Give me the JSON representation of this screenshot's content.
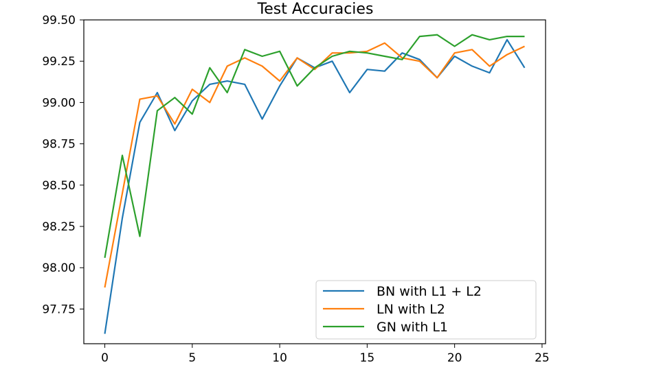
{
  "chart_data": {
    "type": "line",
    "title": "Test Accuracies",
    "xlabel": "",
    "ylabel": "",
    "xlim": [
      -1.2,
      25.2
    ],
    "ylim": [
      97.54,
      99.5
    ],
    "x_ticks": [
      0,
      5,
      10,
      15,
      20,
      25
    ],
    "y_ticks": [
      97.75,
      98.0,
      98.25,
      98.5,
      98.75,
      99.0,
      99.25,
      99.5
    ],
    "x_tick_labels": [
      "0",
      "5",
      "10",
      "15",
      "20",
      "25"
    ],
    "y_tick_labels": [
      "97.75",
      "98.00",
      "98.25",
      "98.50",
      "98.75",
      "99.00",
      "99.25",
      "99.50"
    ],
    "grid": false,
    "legend_position": "lower-right",
    "x": [
      0,
      1,
      2,
      3,
      4,
      5,
      6,
      7,
      8,
      9,
      10,
      11,
      12,
      13,
      14,
      15,
      16,
      17,
      18,
      19,
      20,
      21,
      22,
      23,
      24
    ],
    "series": [
      {
        "name": "BN with L1 + L2",
        "color": "#1f77b4",
        "values": [
          97.6,
          98.3,
          98.88,
          99.06,
          98.83,
          99.01,
          99.11,
          99.13,
          99.11,
          98.9,
          99.1,
          99.27,
          99.21,
          99.25,
          99.06,
          99.2,
          99.19,
          99.3,
          99.26,
          99.15,
          99.28,
          99.22,
          99.18,
          99.38,
          99.21
        ]
      },
      {
        "name": "LN with L2",
        "color": "#ff7f0e",
        "values": [
          97.88,
          98.45,
          99.02,
          99.04,
          98.87,
          99.08,
          99.0,
          99.22,
          99.27,
          99.22,
          99.13,
          99.27,
          99.2,
          99.3,
          99.3,
          99.31,
          99.36,
          99.27,
          99.25,
          99.15,
          99.3,
          99.32,
          99.22,
          99.29,
          99.34
        ]
      },
      {
        "name": "GN with L1",
        "color": "#2ca02c",
        "values": [
          98.06,
          98.68,
          98.19,
          98.95,
          99.03,
          98.93,
          99.21,
          99.06,
          99.32,
          99.28,
          99.31,
          99.1,
          99.21,
          99.28,
          99.31,
          99.3,
          99.28,
          99.26,
          99.4,
          99.41,
          99.34,
          99.41,
          99.38,
          99.4,
          99.4
        ]
      }
    ]
  }
}
